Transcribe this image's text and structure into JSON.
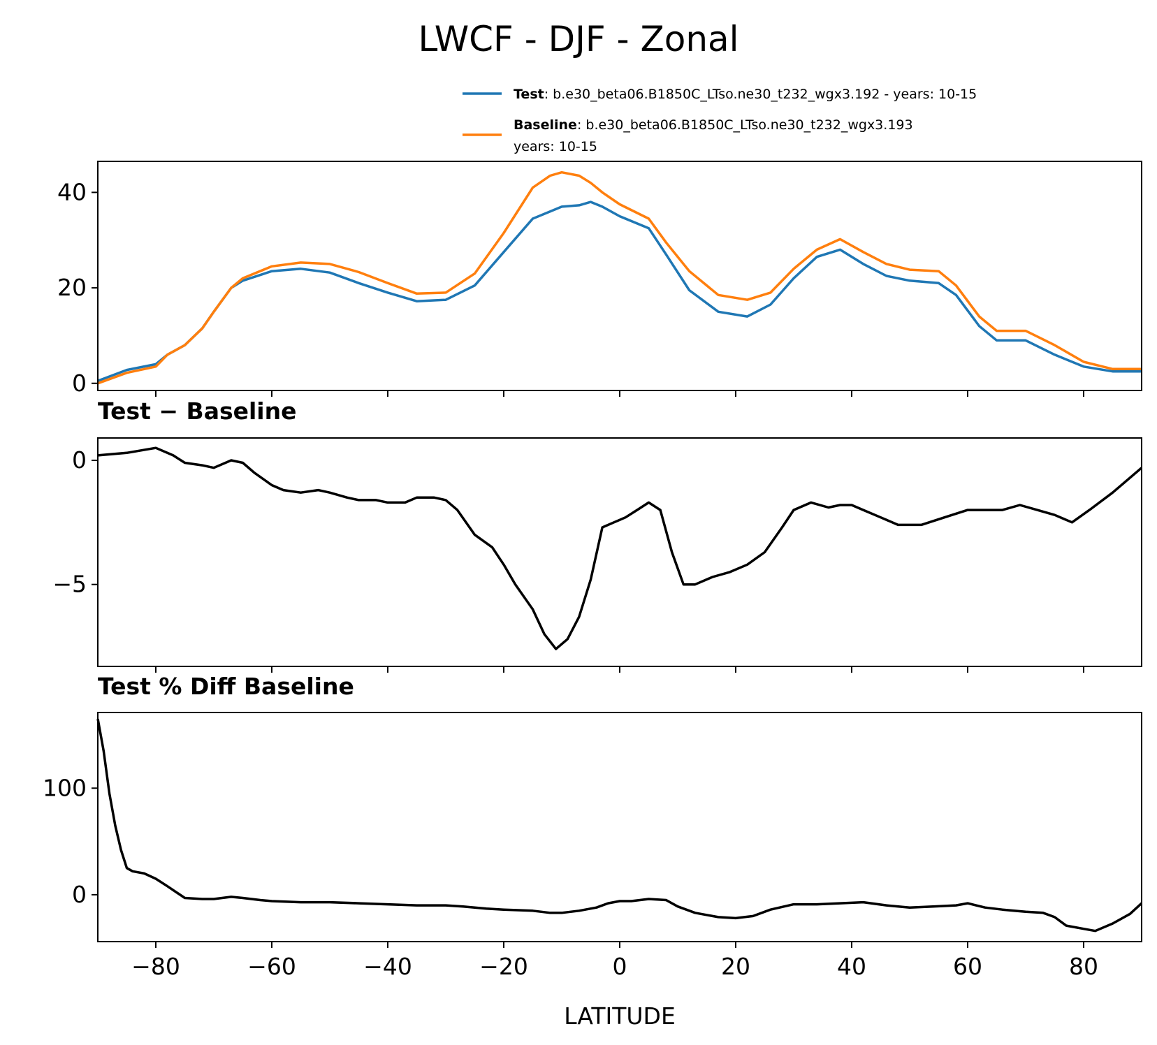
{
  "figure_title": "LWCF - DJF - Zonal",
  "legend": {
    "test": {
      "name": "Test",
      "text": ": b.e30_beta06.B1850C_LTso.ne30_t232_wgx3.192 - years: 10-15",
      "color": "#1f77b4"
    },
    "baseline": {
      "name": "Baseline",
      "text": ": b.e30_beta06.B1850C_LTso.ne30_t232_wgx3.193",
      "text2": "years: 10-15",
      "color": "#ff7f0e"
    }
  },
  "xlabel": "LATITUDE",
  "chart_data": [
    {
      "type": "line",
      "title": "",
      "xlim": [
        -90,
        90
      ],
      "ylim": [
        -1.5,
        46.5
      ],
      "xticks": [
        -80,
        -60,
        -40,
        -20,
        0,
        20,
        40,
        60,
        80
      ],
      "yticks": [
        0,
        20,
        40
      ],
      "ytick_labels": [
        "0",
        "20",
        "40"
      ],
      "x": [
        -90,
        -85,
        -80,
        -78,
        -75,
        -72,
        -70,
        -67,
        -65,
        -60,
        -55,
        -50,
        -45,
        -40,
        -35,
        -30,
        -25,
        -20,
        -15,
        -12,
        -10,
        -7,
        -5,
        -3,
        0,
        5,
        8,
        12,
        17,
        22,
        26,
        30,
        34,
        38,
        42,
        46,
        50,
        55,
        58,
        62,
        65,
        70,
        75,
        80,
        85,
        90
      ],
      "series": [
        {
          "name": "Test",
          "color": "#1f77b4",
          "values": [
            0.5,
            2.8,
            4.0,
            6.0,
            8.0,
            11.5,
            15.0,
            20.0,
            21.5,
            23.5,
            24.0,
            23.2,
            21.0,
            19.0,
            17.2,
            17.5,
            20.5,
            27.5,
            34.5,
            36.0,
            37.0,
            37.3,
            38.0,
            37.0,
            35.0,
            32.5,
            27.0,
            19.5,
            15.0,
            14.0,
            16.5,
            22.0,
            26.5,
            28.0,
            25.0,
            22.5,
            21.5,
            21.0,
            18.5,
            12.0,
            9.0,
            9.0,
            6.0,
            3.5,
            2.5,
            2.5
          ]
        },
        {
          "name": "Baseline",
          "color": "#ff7f0e",
          "values": [
            0.0,
            2.2,
            3.5,
            6.0,
            8.0,
            11.5,
            15.0,
            20.0,
            22.0,
            24.5,
            25.3,
            25.0,
            23.3,
            21.0,
            18.8,
            19.0,
            23.0,
            31.5,
            41.0,
            43.5,
            44.2,
            43.5,
            42.0,
            40.0,
            37.5,
            34.5,
            29.5,
            23.5,
            18.5,
            17.5,
            19.0,
            24.0,
            28.0,
            30.2,
            27.5,
            25.0,
            23.8,
            23.5,
            20.5,
            14.0,
            11.0,
            11.0,
            8.0,
            4.5,
            3.0,
            3.0
          ]
        }
      ]
    },
    {
      "type": "line",
      "title": "Test − Baseline",
      "xlim": [
        -90,
        90
      ],
      "ylim": [
        -8.3,
        0.9
      ],
      "xticks": [
        -80,
        -60,
        -40,
        -20,
        0,
        20,
        40,
        60,
        80
      ],
      "yticks": [
        0,
        -5
      ],
      "ytick_labels": [
        "0",
        "−5"
      ],
      "x": [
        -90,
        -85,
        -80,
        -77,
        -75,
        -72,
        -70,
        -67,
        -65,
        -63,
        -60,
        -58,
        -55,
        -52,
        -50,
        -47,
        -45,
        -42,
        -40,
        -37,
        -35,
        -32,
        -30,
        -28,
        -25,
        -22,
        -20,
        -18,
        -15,
        -13,
        -11,
        -9,
        -7,
        -5,
        -3,
        -1,
        1,
        3,
        5,
        7,
        9,
        11,
        13,
        16,
        19,
        22,
        25,
        28,
        30,
        33,
        36,
        38,
        40,
        42,
        45,
        48,
        52,
        56,
        60,
        63,
        66,
        69,
        72,
        75,
        78,
        81,
        85,
        90
      ],
      "series": [
        {
          "name": "Test − Baseline",
          "color": "#000000",
          "values": [
            0.2,
            0.3,
            0.5,
            0.2,
            -0.1,
            -0.2,
            -0.3,
            0.0,
            -0.1,
            -0.5,
            -1.0,
            -1.2,
            -1.3,
            -1.2,
            -1.3,
            -1.5,
            -1.6,
            -1.6,
            -1.7,
            -1.7,
            -1.5,
            -1.5,
            -1.6,
            -2.0,
            -3.0,
            -3.5,
            -4.2,
            -5.0,
            -6.0,
            -7.0,
            -7.6,
            -7.2,
            -6.3,
            -4.8,
            -2.7,
            -2.5,
            -2.3,
            -2.0,
            -1.7,
            -2.0,
            -3.7,
            -5.0,
            -5.0,
            -4.7,
            -4.5,
            -4.2,
            -3.7,
            -2.7,
            -2.0,
            -1.7,
            -1.9,
            -1.8,
            -1.8,
            -2.0,
            -2.3,
            -2.6,
            -2.6,
            -2.3,
            -2.0,
            -2.0,
            -2.0,
            -1.8,
            -2.0,
            -2.2,
            -2.5,
            -2.0,
            -1.3,
            -0.3
          ]
        }
      ]
    },
    {
      "type": "line",
      "title": "Test % Diff Baseline",
      "xlim": [
        -90,
        90
      ],
      "ylim": [
        -44,
        171
      ],
      "xticks": [
        -80,
        -60,
        -40,
        -20,
        0,
        20,
        40,
        60,
        80
      ],
      "yticks": [
        0,
        100
      ],
      "ytick_labels": [
        "0",
        "100"
      ],
      "x": [
        -90,
        -89,
        -88,
        -87,
        -86,
        -85,
        -84,
        -82,
        -80,
        -78,
        -75,
        -72,
        -70,
        -67,
        -65,
        -62,
        -60,
        -55,
        -50,
        -45,
        -40,
        -35,
        -30,
        -27,
        -23,
        -20,
        -15,
        -12,
        -10,
        -7,
        -4,
        -2,
        0,
        2,
        5,
        8,
        10,
        13,
        17,
        20,
        23,
        26,
        30,
        34,
        38,
        42,
        46,
        50,
        54,
        58,
        60,
        63,
        66,
        70,
        73,
        75,
        77,
        80,
        82,
        85,
        88,
        90
      ],
      "series": [
        {
          "name": "Test % Diff Baseline",
          "color": "#000000",
          "values": [
            165,
            135,
            95,
            65,
            42,
            25,
            22,
            20,
            15,
            8,
            -3,
            -4,
            -4,
            -2,
            -3,
            -5,
            -6,
            -7,
            -7,
            -8,
            -9,
            -10,
            -10,
            -11,
            -13,
            -14,
            -15,
            -17,
            -17,
            -15,
            -12,
            -8,
            -6,
            -6,
            -4,
            -5,
            -11,
            -17,
            -21,
            -22,
            -20,
            -14,
            -9,
            -9,
            -8,
            -7,
            -10,
            -12,
            -11,
            -10,
            -8,
            -12,
            -14,
            -16,
            -17,
            -21,
            -29,
            -32,
            -34,
            -27,
            -18,
            -8
          ]
        }
      ]
    }
  ]
}
